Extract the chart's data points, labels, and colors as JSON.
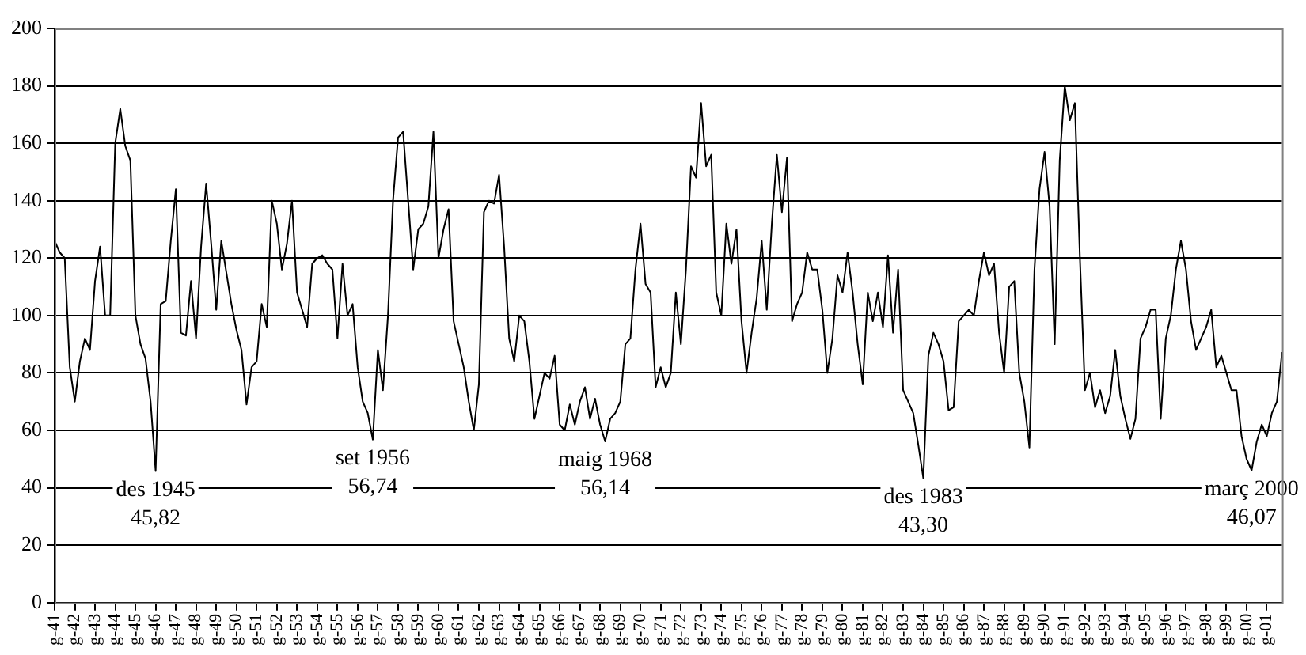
{
  "chart_data": {
    "type": "line",
    "grid": "y",
    "legend": false,
    "marker": "none",
    "line_style": "solid",
    "ylim": [
      0,
      200
    ],
    "yticks": [
      0,
      20,
      40,
      60,
      80,
      100,
      120,
      140,
      160,
      180,
      200
    ],
    "categories": [
      "g-41",
      null,
      null,
      null,
      "g-42",
      null,
      null,
      null,
      "g-43",
      null,
      null,
      null,
      "g-44",
      null,
      null,
      null,
      "g-45",
      null,
      null,
      null,
      "g-46",
      null,
      null,
      null,
      "g-47",
      null,
      null,
      null,
      "g-48",
      null,
      null,
      null,
      "g-49",
      null,
      null,
      null,
      "g-50",
      null,
      null,
      null,
      "g-51",
      null,
      null,
      null,
      "g-52",
      null,
      null,
      null,
      "g-53",
      null,
      null,
      null,
      "g-54",
      null,
      null,
      null,
      "g-55",
      null,
      null,
      null,
      "g-56",
      null,
      null,
      null,
      "g-57",
      null,
      null,
      null,
      "g-58",
      null,
      null,
      null,
      "g-59",
      null,
      null,
      null,
      "g-60",
      null,
      null,
      null,
      "g-61",
      null,
      null,
      null,
      "g-62",
      null,
      null,
      null,
      "g-63",
      null,
      null,
      null,
      "g-64",
      null,
      null,
      null,
      "g-65",
      null,
      null,
      null,
      "g-66",
      null,
      null,
      null,
      "g-67",
      null,
      null,
      null,
      "g-68",
      null,
      null,
      null,
      "g-69",
      null,
      null,
      null,
      "g-70",
      null,
      null,
      null,
      "g-71",
      null,
      null,
      null,
      "g-72",
      null,
      null,
      null,
      "g-73",
      null,
      null,
      null,
      "g-74",
      null,
      null,
      null,
      "g-75",
      null,
      null,
      null,
      "g-76",
      null,
      null,
      null,
      "g-77",
      null,
      null,
      null,
      "g-78",
      null,
      null,
      null,
      "g-79",
      null,
      null,
      null,
      "g-80",
      null,
      null,
      null,
      "g-81",
      null,
      null,
      null,
      "g-82",
      null,
      null,
      null,
      "g-83",
      null,
      null,
      null,
      "g-84",
      null,
      null,
      null,
      "g-85",
      null,
      null,
      null,
      "g-86",
      null,
      null,
      null,
      "g-87",
      null,
      null,
      null,
      "g-88",
      null,
      null,
      null,
      "g-89",
      null,
      null,
      null,
      "g-90",
      null,
      null,
      null,
      "g-91",
      null,
      null,
      null,
      "g-92",
      null,
      null,
      null,
      "g-93",
      null,
      null,
      null,
      "g-94",
      null,
      null,
      null,
      "g-95",
      null,
      null,
      null,
      "g-96",
      null,
      null,
      null,
      "g-97",
      null,
      null,
      null,
      "g-98",
      null,
      null,
      null,
      "g-99",
      null,
      null,
      null,
      "g-00",
      null,
      null,
      null,
      "g-01",
      null,
      null,
      null
    ],
    "series": [
      {
        "color": "#000000",
        "values": [
          126,
          122,
          120,
          82,
          70,
          84,
          92,
          88,
          112,
          124,
          100,
          100,
          160,
          172,
          159,
          154,
          100,
          90,
          85,
          70,
          45.82,
          104,
          105,
          126,
          144,
          94,
          93,
          112,
          92,
          124,
          146,
          125,
          102,
          126,
          115,
          104,
          95,
          88,
          69,
          82,
          84,
          104,
          96,
          140,
          132,
          116,
          125,
          140,
          108,
          102,
          96,
          118,
          120,
          121,
          118,
          116,
          92,
          118,
          100,
          104,
          82,
          70,
          66,
          56.74,
          88,
          74,
          100,
          140,
          162,
          164,
          140,
          116,
          130,
          132,
          138,
          164,
          120,
          130,
          137,
          98,
          90,
          82,
          70,
          60,
          76,
          136,
          140,
          139,
          149,
          124,
          92,
          84,
          100,
          98,
          84,
          64,
          72,
          80,
          78,
          86,
          62,
          60,
          69,
          62,
          70,
          75,
          64,
          71,
          62,
          56.14,
          64,
          66,
          70,
          90,
          92,
          116,
          132,
          111,
          108,
          75,
          82,
          75,
          80,
          108,
          90,
          116,
          152,
          148,
          174,
          152,
          156,
          108,
          100,
          132,
          118,
          130,
          98,
          80,
          94,
          106,
          126,
          102,
          132,
          156,
          136,
          155,
          98,
          104,
          108,
          122,
          116,
          116,
          102,
          80,
          92,
          114,
          108,
          122,
          108,
          90,
          76,
          108,
          98,
          108,
          96,
          121,
          94,
          116,
          74,
          70,
          66,
          55,
          43.3,
          86,
          94,
          90,
          84,
          67,
          68,
          98,
          100,
          102,
          100,
          112,
          122,
          114,
          118,
          94,
          80,
          110,
          112,
          80,
          70,
          54,
          116,
          144,
          157,
          138,
          90,
          154,
          180,
          168,
          174,
          120,
          74,
          80,
          68,
          74,
          66,
          72,
          88,
          72,
          64,
          57,
          64,
          92,
          96,
          102,
          102,
          64,
          92,
          100,
          116,
          126,
          116,
          98,
          88,
          92,
          96,
          102,
          82,
          86,
          80,
          74,
          74,
          58,
          50,
          46.07,
          56,
          62,
          58,
          66,
          70,
          87
        ]
      }
    ],
    "annotations": [
      {
        "text": "des 1945\n45,82",
        "y": 45.82
      },
      {
        "text": "set 1956\n56,74",
        "y": 56.74
      },
      {
        "text": "maig 1968\n56,14",
        "y": 56.14
      },
      {
        "text": "des 1983\n43,30",
        "y": 43.3
      },
      {
        "text": "març 2000\n46,07",
        "y": 46.07
      }
    ]
  }
}
